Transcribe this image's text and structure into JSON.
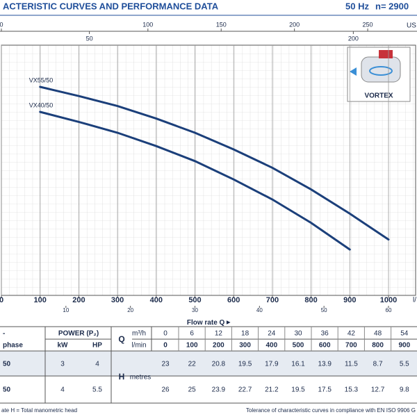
{
  "chart_data": {
    "type": "line",
    "title": "ACTERISTIC CURVES AND PERFORMANCE DATA",
    "frequency_label": "50 Hz",
    "speed_label": "n= 2900",
    "x_label": "Flow rate Q",
    "x_unit": "l/",
    "x": [
      100,
      200,
      300,
      400,
      500,
      600,
      700,
      800,
      900,
      1000
    ],
    "xlim": [
      0,
      1070
    ],
    "xticks": [
      0,
      100,
      200,
      300,
      400,
      500,
      600,
      700,
      800,
      900,
      1000
    ],
    "x2lim": [
      0,
      64.2
    ],
    "x2ticks": [
      10,
      20,
      30,
      40,
      50,
      60
    ],
    "us_gpm_lim": [
      0,
      282.7
    ],
    "us_gpm_ticks": [
      0,
      100,
      150,
      200,
      250
    ],
    "us_gpm_unit": "US g",
    "imp_gpm_lim": [
      0,
      235.4
    ],
    "imp_gpm_ticks": [
      50,
      200
    ],
    "ylim": [
      0,
      30
    ],
    "grid": true,
    "icon_label": "VORTEX",
    "series": [
      {
        "name": "VX55/50",
        "color": "#1b3f7a",
        "values": [
          25,
          23.9,
          22.7,
          21.2,
          19.5,
          17.5,
          15.3,
          12.7,
          9.8,
          6.7
        ]
      },
      {
        "name": "VX40/50",
        "color": "#1b3f7a",
        "values": [
          22,
          20.8,
          19.5,
          17.9,
          16.1,
          13.9,
          11.5,
          8.7,
          5.5,
          null
        ]
      }
    ]
  },
  "table": {
    "corner": "-",
    "type_label": "phase",
    "power_label": "POWER (P₂)",
    "kw_label": "kW",
    "hp_label": "HP",
    "q_label": "Q",
    "q_unit_m3h": "m³/h",
    "q_unit_lmin": "l/min",
    "q_m3h": [
      0,
      6,
      12,
      18,
      24,
      30,
      36,
      42,
      48,
      54
    ],
    "q_lmin": [
      0,
      100,
      200,
      300,
      400,
      500,
      600,
      700,
      800,
      900
    ],
    "h_label": "H",
    "h_unit": "metres",
    "rows": [
      {
        "model": "50",
        "kw": 3,
        "hp": 4,
        "h": [
          23,
          22,
          20.8,
          19.5,
          17.9,
          16.1,
          13.9,
          11.5,
          8.7,
          5.5
        ]
      },
      {
        "model": "50",
        "kw": 4,
        "hp": 5.5,
        "h": [
          26,
          25,
          23.9,
          22.7,
          21.2,
          19.5,
          17.5,
          15.3,
          12.7,
          9.8
        ]
      }
    ],
    "footer_left": "ate  H = Total manometric head",
    "footer_right": "Tolerance of characteristic curves in compliance with EN ISO 9906 G"
  }
}
